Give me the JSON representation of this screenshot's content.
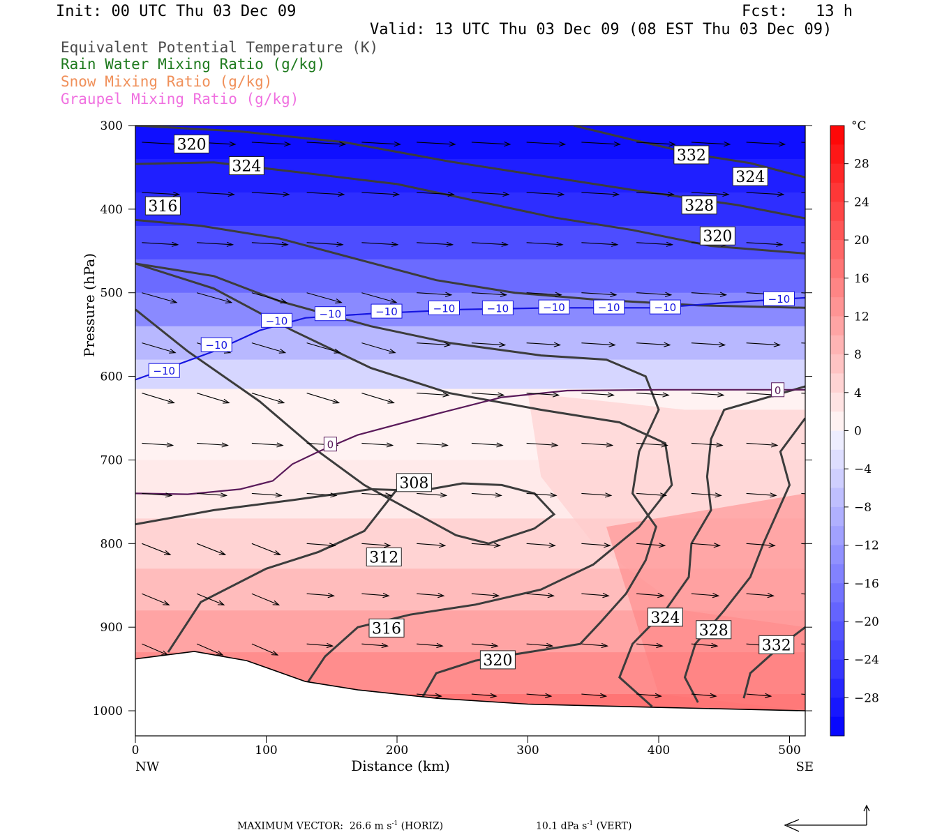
{
  "header": {
    "init": "Init: 00 UTC Thu 03 Dec 09",
    "fcst": "Fcst:   13 h",
    "valid": "Valid: 13 UTC Thu 03 Dec 09 (08 EST Thu 03 Dec 09)"
  },
  "legend": [
    {
      "label": "Equivalent Potential Temperature (K)",
      "color": "#4a4a4a"
    },
    {
      "label": "Rain Water Mixing Ratio (g/kg)",
      "color": "#1e7a1e"
    },
    {
      "label": "Snow Mixing Ratio (g/kg)",
      "color": "#f0905a"
    },
    {
      "label": "Graupel Mixing Ratio (g/kg)",
      "color": "#f070e0"
    }
  ],
  "footer": {
    "max_vector_label": "MAXIMUM VECTOR:",
    "horiz": "26.6 m s",
    "horiz_suffix": " (HORIZ)",
    "vert": "10.1 dPa s",
    "vert_suffix": " (VERT)",
    "exp": "-1"
  },
  "chart_data": {
    "type": "heatmap",
    "xlabel": "Distance (km)",
    "ylabel": "Pressure (hPa)",
    "xlim": [
      0,
      512
    ],
    "ylim": [
      1030,
      300
    ],
    "x_ticks": [
      0,
      100,
      200,
      300,
      400,
      500
    ],
    "y_ticks": [
      300,
      400,
      500,
      600,
      700,
      800,
      900,
      1000
    ],
    "x_end_labels": {
      "left": "NW",
      "right": "SE"
    },
    "colorbar": {
      "unit": "°C",
      "range": [
        -32,
        32
      ],
      "ticks": [
        28,
        24,
        20,
        16,
        12,
        8,
        4,
        0,
        -4,
        -8,
        -12,
        -16,
        -20,
        -24,
        -28
      ]
    },
    "temperature_isotherms": [
      {
        "value": -10,
        "label": "−10",
        "color": "#1515e0",
        "points": [
          [
            0,
            604
          ],
          [
            25,
            590
          ],
          [
            60,
            570
          ],
          [
            95,
            545
          ],
          [
            130,
            530
          ],
          [
            180,
            525
          ],
          [
            250,
            520
          ],
          [
            320,
            518
          ],
          [
            400,
            518
          ],
          [
            450,
            512
          ],
          [
            512,
            506
          ]
        ],
        "label_at": [
          [
            22,
            593
          ],
          [
            62,
            562
          ],
          [
            108,
            533
          ],
          [
            149,
            525
          ],
          [
            192,
            522
          ],
          [
            236,
            518
          ],
          [
            277,
            518
          ],
          [
            320,
            517
          ],
          [
            362,
            517
          ],
          [
            405,
            517
          ],
          [
            492,
            507
          ]
        ]
      },
      {
        "value": 0,
        "label": "0",
        "color": "#5a1a5a",
        "points": [
          [
            0,
            740
          ],
          [
            40,
            741
          ],
          [
            80,
            735
          ],
          [
            105,
            725
          ],
          [
            120,
            705
          ],
          [
            140,
            690
          ],
          [
            170,
            670
          ],
          [
            230,
            645
          ],
          [
            280,
            625
          ],
          [
            330,
            617
          ],
          [
            400,
            616
          ],
          [
            512,
            616
          ]
        ],
        "label_at": [
          [
            149,
            681
          ],
          [
            491,
            616
          ]
        ]
      }
    ],
    "theta_e_contours": [
      {
        "value": 332,
        "label_at": [
          [
            425,
            335
          ],
          [
            490,
            921
          ]
        ],
        "lines": [
          [
            [
              335,
              300
            ],
            [
              380,
              317
            ],
            [
              430,
              335
            ],
            [
              470,
              345
            ],
            [
              512,
              362
            ]
          ],
          [
            [
              465,
              985
            ],
            [
              470,
              955
            ],
            [
              495,
              920
            ],
            [
              512,
              900
            ]
          ]
        ]
      },
      {
        "value": 328,
        "label_at": [
          [
            431,
            395
          ],
          [
            442,
            903
          ]
        ],
        "lines": [
          [
            [
              0,
              300
            ],
            [
              80,
              307
            ],
            [
              160,
              320
            ],
            [
              240,
              343
            ],
            [
              310,
              360
            ],
            [
              380,
              377
            ],
            [
              460,
              395
            ],
            [
              512,
              411
            ]
          ],
          [
            [
              430,
              990
            ],
            [
              420,
              960
            ],
            [
              428,
              920
            ],
            [
              450,
              880
            ],
            [
              470,
              840
            ],
            [
              480,
              800
            ],
            [
              500,
              730
            ],
            [
              493,
              690
            ],
            [
              512,
              650
            ]
          ]
        ]
      },
      {
        "value": 324,
        "label_at": [
          [
            85,
            348
          ],
          [
            470,
            361
          ],
          [
            405,
            888
          ]
        ],
        "lines": [
          [
            [
              0,
              346
            ],
            [
              60,
              344
            ],
            [
              120,
              355
            ],
            [
              200,
              370
            ],
            [
              260,
              390
            ],
            [
              320,
              410
            ],
            [
              380,
              425
            ],
            [
              440,
              444
            ],
            [
              512,
              453
            ]
          ],
          [
            [
              395,
              995
            ],
            [
              370,
              960
            ],
            [
              380,
              920
            ],
            [
              405,
              880
            ],
            [
              423,
              840
            ],
            [
              425,
              800
            ],
            [
              440,
              760
            ],
            [
              437,
              720
            ],
            [
              440,
              675
            ],
            [
              450,
              640
            ],
            [
              512,
              612
            ]
          ]
        ]
      },
      {
        "value": 320,
        "label_at": [
          [
            43,
            322
          ],
          [
            445,
            432
          ],
          [
            277,
            939
          ]
        ],
        "lines": [
          [
            [
              0,
              413
            ],
            [
              50,
              420
            ],
            [
              110,
              435
            ],
            [
              170,
              460
            ],
            [
              230,
              485
            ],
            [
              290,
              500
            ],
            [
              350,
              508
            ],
            [
              430,
              515
            ],
            [
              512,
              518
            ]
          ],
          [
            [
              219,
              985
            ],
            [
              230,
              955
            ],
            [
              260,
              940
            ],
            [
              300,
              930
            ],
            [
              340,
              920
            ],
            [
              355,
              895
            ],
            [
              375,
              860
            ],
            [
              390,
              820
            ],
            [
              398,
              780
            ],
            [
              380,
              740
            ],
            [
              385,
              690
            ],
            [
              400,
              640
            ],
            [
              390,
              600
            ],
            [
              360,
              580
            ],
            [
              310,
              575
            ],
            [
              240,
              560
            ],
            [
              180,
              540
            ],
            [
              110,
              510
            ],
            [
              60,
              480
            ],
            [
              0,
              465
            ]
          ]
        ]
      },
      {
        "value": 316,
        "label_at": [
          [
            21,
            396
          ],
          [
            192,
            901
          ]
        ],
        "lines": [
          [
            [
              0,
              465
            ],
            [
              60,
              495
            ],
            [
              120,
              545
            ],
            [
              180,
              590
            ],
            [
              240,
              620
            ],
            [
              310,
              640
            ],
            [
              370,
              655
            ],
            [
              405,
              680
            ],
            [
              410,
              730
            ],
            [
              385,
              780
            ],
            [
              350,
              825
            ],
            [
              310,
              855
            ],
            [
              260,
              873
            ],
            [
              210,
              885
            ],
            [
              170,
              900
            ],
            [
              145,
              935
            ],
            [
              130,
              970
            ]
          ]
        ]
      },
      {
        "value": 312,
        "label_at": [
          [
            190,
            816
          ]
        ],
        "lines": [
          [
            [
              0,
              520
            ],
            [
              40,
              570
            ],
            [
              95,
              630
            ],
            [
              140,
              690
            ],
            [
              175,
              730
            ],
            [
              210,
              760
            ],
            [
              245,
              790
            ],
            [
              270,
              800
            ],
            [
              305,
              782
            ],
            [
              320,
              765
            ],
            [
              305,
              740
            ],
            [
              280,
              730
            ],
            [
              250,
              728
            ],
            [
              225,
              735
            ],
            [
              200,
              735
            ],
            [
              175,
              785
            ],
            [
              140,
              810
            ],
            [
              100,
              830
            ],
            [
              50,
              870
            ],
            [
              25,
              930
            ]
          ]
        ]
      },
      {
        "value": 308,
        "label_at": [
          [
            213,
            727
          ]
        ],
        "lines": [
          [
            [
              0,
              777
            ],
            [
              60,
              760
            ],
            [
              120,
              748
            ],
            [
              180,
              735
            ],
            [
              220,
              737
            ]
          ]
        ]
      }
    ]
  }
}
